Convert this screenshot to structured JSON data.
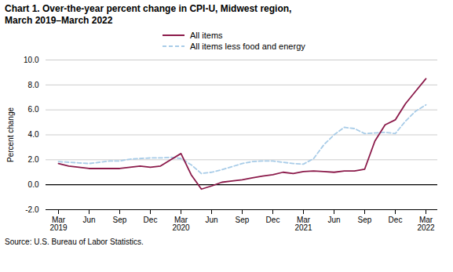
{
  "chart_data": {
    "type": "line",
    "title": "Chart 1. Over-the-year percent change in CPI-U, Midwest region,\nMarch 2019–March 2022",
    "ylabel": "Percent change",
    "source": "Source: U.S. Bureau of Labor Statistics.",
    "categories": [
      "Mar\n2019",
      null,
      null,
      "Jun",
      null,
      null,
      "Sep",
      null,
      null,
      "Dec",
      null,
      null,
      "Mar\n2020",
      null,
      null,
      "Jun",
      null,
      null,
      "Sep",
      null,
      null,
      "Dec",
      null,
      null,
      "Mar\n2021",
      null,
      null,
      "Jun",
      null,
      null,
      "Sep",
      null,
      null,
      "Dec",
      null,
      null,
      "Mar\n2022"
    ],
    "series": [
      {
        "name": "All items",
        "color": "#8B1A4A",
        "line_style": "solid",
        "values": [
          1.7,
          1.5,
          1.4,
          1.3,
          1.3,
          1.3,
          1.3,
          1.4,
          1.5,
          1.4,
          1.5,
          2.0,
          2.5,
          0.8,
          -0.35,
          -0.1,
          0.2,
          0.3,
          0.4,
          0.55,
          0.7,
          0.8,
          1.0,
          0.9,
          1.05,
          1.1,
          1.05,
          1.0,
          1.1,
          1.1,
          1.25,
          3.5,
          4.8,
          5.2,
          6.5,
          7.5,
          8.5
        ]
      },
      {
        "name": "All items less food and energy",
        "color": "#A8CCE8",
        "line_style": "dashed",
        "values": [
          1.85,
          1.8,
          1.75,
          1.7,
          1.8,
          1.9,
          1.9,
          2.05,
          2.1,
          2.15,
          2.15,
          2.2,
          2.1,
          1.6,
          0.9,
          1.0,
          1.2,
          1.45,
          1.7,
          1.85,
          1.9,
          1.9,
          1.8,
          1.7,
          1.65,
          2.1,
          3.2,
          4.0,
          4.6,
          4.5,
          4.1,
          4.15,
          4.2,
          4.1,
          5.1,
          5.9,
          6.4
        ]
      }
    ],
    "ylim": [
      -2.0,
      10.0
    ],
    "yticks": [
      {
        "value": -2.0,
        "label": "-2.0"
      },
      {
        "value": 0.0,
        "label": "0.0"
      },
      {
        "value": 2.0,
        "label": "2.0"
      },
      {
        "value": 4.0,
        "label": "4.0"
      },
      {
        "value": 6.0,
        "label": "6.0"
      },
      {
        "value": 8.0,
        "label": "8.0"
      },
      {
        "value": 10.0,
        "label": "10.0"
      }
    ],
    "grid": true,
    "legend": "top"
  }
}
